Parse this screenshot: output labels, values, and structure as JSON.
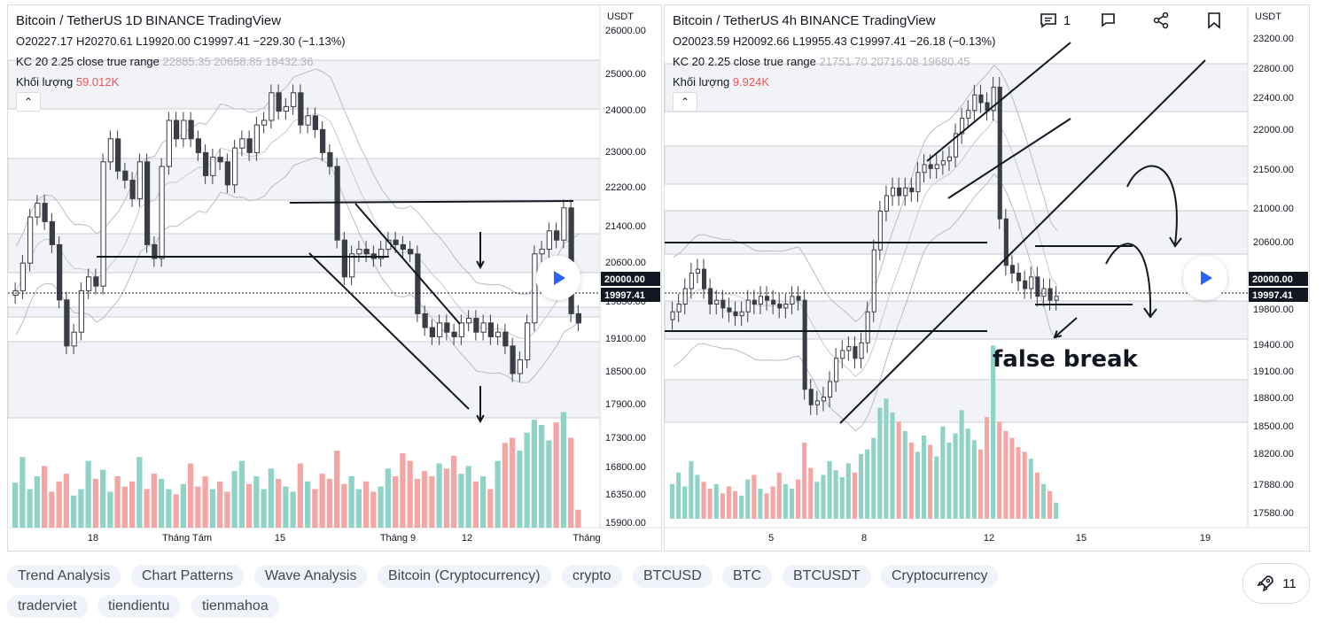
{
  "chart_data": [
    {
      "type": "candlestick",
      "title": "Bitcoin / TetherUS",
      "interval": "1D",
      "exchange": "BINANCE",
      "brand": "TradingView",
      "ohlc_text": {
        "o": "O20227.17",
        "h": "H20270.61",
        "l": "L19920.00",
        "c": "C19997.41",
        "chg": "−229.30 (−1.13%)"
      },
      "indicator": {
        "name": "KC 20 2.25 close true range",
        "values": [
          "22885.35",
          "20658.85",
          "18432.36"
        ]
      },
      "volume": {
        "label": "Khối lượng",
        "value": "59.012K"
      },
      "y_axis_label": "USDT",
      "y_ticks": [
        "26000.00",
        "25000.00",
        "24000.00",
        "23000.00",
        "22200.00",
        "21400.00",
        "20600.00",
        "19850.00",
        "19100.00",
        "18500.00",
        "17900.00",
        "17300.00",
        "16800.00",
        "16350.00",
        "15900.00"
      ],
      "price_badges": [
        "20000.00",
        "19997.41"
      ],
      "x_ticks": [
        "18",
        "Tháng Tám",
        "15",
        "Tháng 9",
        "12",
        "Tháng"
      ],
      "closes": [
        20700,
        21300,
        22300,
        22600,
        22200,
        21700,
        20500,
        19500,
        19800,
        20700,
        21000,
        20800,
        23500,
        24000,
        23300,
        23100,
        22700,
        23500,
        21700,
        21400,
        23400,
        24400,
        24000,
        24400,
        24000,
        23700,
        23200,
        23600,
        23500,
        23000,
        23800,
        24000,
        23700,
        24300,
        24400,
        25000,
        24600,
        24700,
        25000,
        24300,
        24500,
        24200,
        23700,
        23400,
        21800,
        21000,
        21500,
        21600,
        21500,
        21400,
        21600,
        21800,
        21700,
        21600,
        21500,
        20200,
        19900,
        19700,
        20000,
        19800,
        19700,
        20000,
        20100,
        19800,
        20000,
        19700,
        19800,
        19500,
        18900,
        19200,
        20000,
        21500,
        21600,
        22000,
        21800,
        22500,
        20200,
        20000
      ],
      "volume_bars": [
        35,
        55,
        30,
        40,
        48,
        28,
        36,
        42,
        25,
        30,
        52,
        38,
        45,
        28,
        40,
        32,
        36,
        55,
        30,
        42,
        38,
        30,
        26,
        34,
        50,
        32,
        40,
        30,
        36,
        28,
        44,
        52,
        34,
        40,
        30,
        46,
        38,
        32,
        28,
        50,
        36,
        30,
        42,
        38,
        60,
        34,
        40,
        30,
        36,
        28,
        32,
        46,
        40,
        58,
        52,
        38,
        44,
        40,
        50,
        46,
        56,
        42,
        48,
        36,
        40,
        30,
        52,
        66,
        70,
        60,
        74,
        84,
        80,
        68,
        82,
        90,
        70,
        14
      ]
    },
    {
      "type": "candlestick",
      "title": "Bitcoin / TetherUS",
      "interval": "4h",
      "exchange": "BINANCE",
      "brand": "TradingView",
      "ohlc_text": {
        "o": "O20023.59",
        "h": "H20092.66",
        "l": "L19955.43",
        "c": "C19997.41",
        "chg": "−26.18 (−0.13%)"
      },
      "indicator": {
        "name": "KC 20 2.25 close true range",
        "values": [
          "21751.70",
          "20716.08",
          "19680.45"
        ]
      },
      "volume": {
        "label": "Khối lượng",
        "value": "9.924K"
      },
      "y_axis_label": "USDT",
      "y_ticks": [
        "23200.00",
        "22800.00",
        "22400.00",
        "22000.00",
        "21500.00",
        "21000.00",
        "20600.00",
        "19800.00",
        "19400.00",
        "19100.00",
        "18800.00",
        "18500.00",
        "18200.00",
        "17880.00",
        "17580.00"
      ],
      "price_badges": [
        "20000.00",
        "19997.41"
      ],
      "x_ticks": [
        "5",
        "8",
        "12",
        "15",
        "19"
      ],
      "annotation": "false break",
      "closes": [
        19800,
        19900,
        20100,
        20300,
        20350,
        20100,
        19900,
        19950,
        19850,
        19800,
        19750,
        19800,
        19950,
        19900,
        20000,
        19950,
        19900,
        19850,
        19900,
        20000,
        19950,
        18800,
        18600,
        18650,
        18700,
        18900,
        19200,
        19300,
        19350,
        19200,
        19400,
        19800,
        20600,
        21100,
        21300,
        21400,
        21300,
        21400,
        21350,
        21600,
        21700,
        21650,
        21700,
        21750,
        21800,
        22100,
        22300,
        22400,
        22600,
        22500,
        22400,
        22700,
        21000,
        20400,
        20300,
        20200,
        20100,
        20250,
        20000,
        20100,
        19950,
        20000
      ],
      "volume_bars": [
        30,
        40,
        28,
        50,
        38,
        32,
        26,
        30,
        22,
        28,
        24,
        20,
        34,
        38,
        26,
        22,
        28,
        40,
        30,
        26,
        34,
        66,
        44,
        32,
        38,
        50,
        42,
        36,
        48,
        40,
        56,
        60,
        70,
        96,
        104,
        92,
        84,
        76,
        66,
        58,
        72,
        64,
        54,
        80,
        66,
        74,
        94,
        78,
        68,
        60,
        88,
        150,
        84,
        76,
        70,
        62,
        58,
        52,
        40,
        30,
        24,
        14
      ]
    }
  ],
  "tags": [
    "Trend Analysis",
    "Chart Patterns",
    "Wave Analysis",
    "Bitcoin (Cryptocurrency)",
    "crypto",
    "BTCUSD",
    "BTC",
    "BTCUSDT",
    "Cryptocurrency",
    "traderviet",
    "tiendientu",
    "tienmahoa"
  ],
  "actions": {
    "comments": "1",
    "boosts": "11"
  },
  "colors": {
    "up": "#26a69a",
    "down": "#ef5350",
    "vol_up": "#8fd3c7",
    "vol_down": "#f4a6a4"
  },
  "icons": {
    "collapse": "chevron-up-icon",
    "play": "play-icon",
    "comment": "comment-icon",
    "flag": "flag-icon",
    "share": "share-icon",
    "bookmark": "bookmark-icon",
    "boost": "rocket-icon"
  }
}
